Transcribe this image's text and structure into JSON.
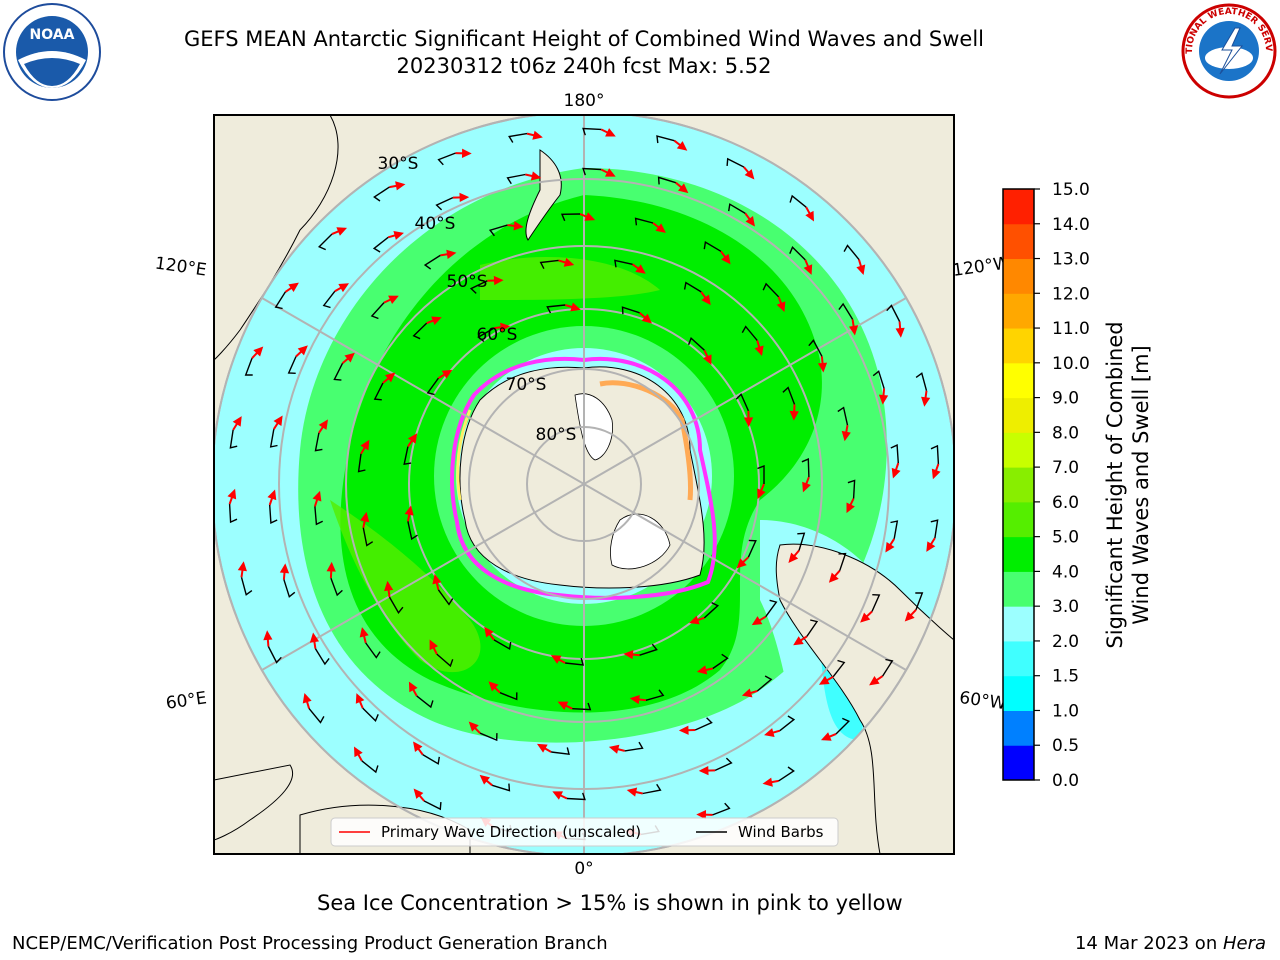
{
  "header": {
    "title_line1": "GEFS MEAN Antarctic Significant Height of Combined Wind Waves and Swell",
    "title_line2": "20230312 t06z 240h fcst   Max: 5.52"
  },
  "map": {
    "projection": "south-polar-stereographic",
    "longitude_labels": [
      "180°",
      "120°E",
      "120°W",
      "60°E",
      "60°W",
      "0°"
    ],
    "latitude_labels": [
      "30°S",
      "40°S",
      "50°S",
      "60°S",
      "70°S",
      "80°S"
    ],
    "land_color": "#efecdc",
    "ice_colors": [
      "#ff33ff",
      "#ffaa55",
      "#ffee66"
    ],
    "legend": {
      "primary_wave_label": "Primary Wave Direction (unscaled)",
      "wind_barbs_label": "Wind Barbs",
      "primary_wave_color": "#ff0000",
      "wind_barbs_color": "#000000"
    }
  },
  "colorbar": {
    "label_line1": "Significant Height of Combined",
    "label_line2": "Wind Waves and Swell [m]",
    "tick_values": [
      "0.0",
      "0.5",
      "1.0",
      "1.5",
      "2.0",
      "3.0",
      "4.0",
      "5.0",
      "6.0",
      "7.0",
      "8.0",
      "9.0",
      "10.0",
      "11.0",
      "12.0",
      "13.0",
      "14.0",
      "15.0"
    ],
    "colors": [
      "#0000ff",
      "#0080ff",
      "#00ffff",
      "#40ffff",
      "#9cffff",
      "#48ff70",
      "#00ee00",
      "#55ee00",
      "#88ee00",
      "#c8ff00",
      "#eeee00",
      "#ffff00",
      "#ffd400",
      "#ffa800",
      "#ff8800",
      "#ff5000",
      "#ff2000"
    ]
  },
  "note": "Sea Ice Concentration > 15% is shown in pink to yellow",
  "footer": {
    "left": "NCEP/EMC/Verification Post Processing Product Generation Branch",
    "right_date": "14 Mar 2023 on ",
    "right_host": "Hera"
  },
  "logos": {
    "noaa_text": "NOAA",
    "nws_text": "NATIONAL WEATHER SERVICE"
  }
}
